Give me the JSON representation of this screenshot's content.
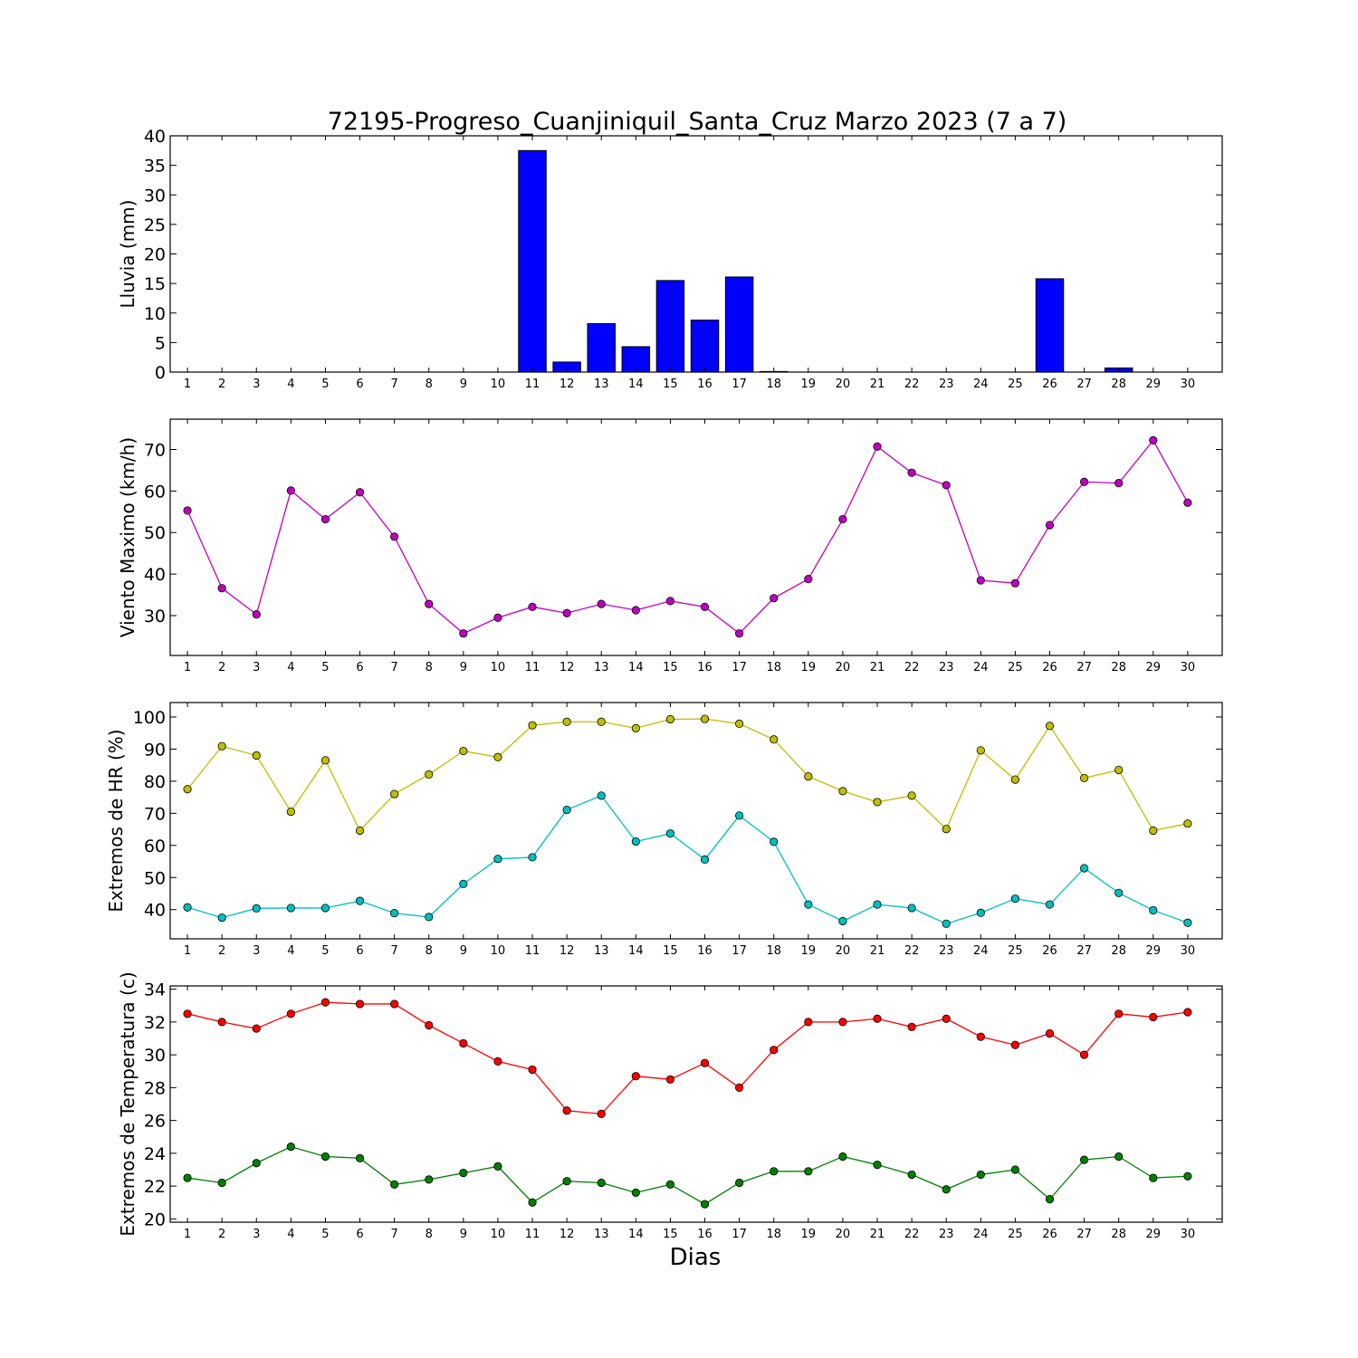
{
  "title": "72195-Progreso_Cuanjiniquil_Santa_Cruz Marzo 2023  (7 a 7)",
  "xlabel": "Dias",
  "chart_data": [
    {
      "type": "bar",
      "ylabel": "Lluvia (mm)",
      "x": [
        1,
        2,
        3,
        4,
        5,
        6,
        7,
        8,
        9,
        10,
        11,
        12,
        13,
        14,
        15,
        16,
        17,
        18,
        19,
        20,
        21,
        22,
        23,
        24,
        25,
        26,
        27,
        28,
        29,
        30
      ],
      "ylim": [
        0,
        40
      ],
      "yticks": [
        0,
        5,
        10,
        15,
        20,
        25,
        30,
        35,
        40
      ],
      "grid": false,
      "series": [
        {
          "color": "#0000ff",
          "values": [
            0,
            0,
            0,
            0,
            0,
            0,
            0,
            0,
            0,
            0,
            37.5,
            1.7,
            8.2,
            4.3,
            15.5,
            8.8,
            16.1,
            0.1,
            0,
            0,
            0,
            0,
            0,
            0,
            0,
            15.8,
            0,
            0.7,
            0,
            0
          ]
        }
      ]
    },
    {
      "type": "line",
      "ylabel": "Viento Maximo (km/h)",
      "x": [
        1,
        2,
        3,
        4,
        5,
        6,
        7,
        8,
        9,
        10,
        11,
        12,
        13,
        14,
        15,
        16,
        17,
        18,
        19,
        20,
        21,
        22,
        23,
        24,
        25,
        26,
        27,
        28,
        29,
        30
      ],
      "ylim": [
        20.4,
        77.3
      ],
      "yticks": [
        30,
        40,
        50,
        60,
        70
      ],
      "grid": false,
      "series": [
        {
          "color": "#bf00bf",
          "values": [
            55.3,
            36.6,
            30.3,
            60.1,
            53.2,
            59.7,
            49.0,
            32.8,
            25.7,
            29.5,
            32.1,
            30.6,
            32.8,
            31.3,
            33.5,
            32.1,
            25.7,
            34.2,
            38.8,
            53.2,
            70.7,
            64.4,
            61.4,
            38.5,
            37.8,
            51.8,
            62.2,
            61.9,
            72.2,
            57.2
          ]
        }
      ]
    },
    {
      "type": "line",
      "ylabel": "Extremos de HR (%)",
      "x": [
        1,
        2,
        3,
        4,
        5,
        6,
        7,
        8,
        9,
        10,
        11,
        12,
        13,
        14,
        15,
        16,
        17,
        18,
        19,
        20,
        21,
        22,
        23,
        24,
        25,
        26,
        27,
        28,
        29,
        30
      ],
      "ylim": [
        30.9,
        104.5
      ],
      "yticks": [
        40,
        50,
        60,
        70,
        80,
        90,
        100
      ],
      "grid": false,
      "series": [
        {
          "color": "#bfbf00",
          "values": [
            77.5,
            90.9,
            88.0,
            70.5,
            86.5,
            64.6,
            76.0,
            82.1,
            89.4,
            87.5,
            97.4,
            98.5,
            98.5,
            96.5,
            99.3,
            99.4,
            97.9,
            93.0,
            81.5,
            76.9,
            73.5,
            75.5,
            65.1,
            89.6,
            80.5,
            97.2,
            81.0,
            83.5,
            64.6,
            66.8
          ]
        },
        {
          "color": "#00bfbf",
          "values": [
            40.7,
            37.5,
            40.4,
            40.5,
            40.5,
            42.7,
            38.9,
            37.7,
            48.0,
            55.8,
            56.3,
            71.1,
            75.5,
            61.2,
            63.7,
            55.6,
            69.3,
            61.1,
            41.6,
            36.4,
            41.6,
            40.5,
            35.6,
            39.0,
            43.4,
            41.6,
            52.9,
            45.2,
            39.8,
            35.9
          ]
        }
      ]
    },
    {
      "type": "line",
      "ylabel": "Extremos de Temperatura (c)",
      "x": [
        1,
        2,
        3,
        4,
        5,
        6,
        7,
        8,
        9,
        10,
        11,
        12,
        13,
        14,
        15,
        16,
        17,
        18,
        19,
        20,
        21,
        22,
        23,
        24,
        25,
        26,
        27,
        28,
        29,
        30
      ],
      "ylim": [
        19.8,
        34.2
      ],
      "yticks": [
        20,
        22,
        24,
        26,
        28,
        30,
        32,
        34
      ],
      "grid": false,
      "series": [
        {
          "color": "#ff0000",
          "values": [
            32.5,
            32.0,
            31.6,
            32.5,
            33.2,
            33.1,
            33.1,
            31.8,
            30.7,
            29.6,
            29.1,
            26.6,
            26.4,
            28.7,
            28.5,
            29.5,
            28.0,
            30.3,
            32.0,
            32.0,
            32.2,
            31.7,
            32.2,
            31.1,
            30.6,
            31.3,
            30.0,
            32.5,
            32.3,
            32.6
          ]
        },
        {
          "color": "#008000",
          "values": [
            22.5,
            22.2,
            23.4,
            24.4,
            23.8,
            23.7,
            22.1,
            22.4,
            22.8,
            23.2,
            21.0,
            22.3,
            22.2,
            21.6,
            22.1,
            20.9,
            22.2,
            22.9,
            22.9,
            23.8,
            23.3,
            22.7,
            21.8,
            22.7,
            23.0,
            21.2,
            23.6,
            23.8,
            22.5,
            22.6
          ]
        }
      ]
    }
  ]
}
